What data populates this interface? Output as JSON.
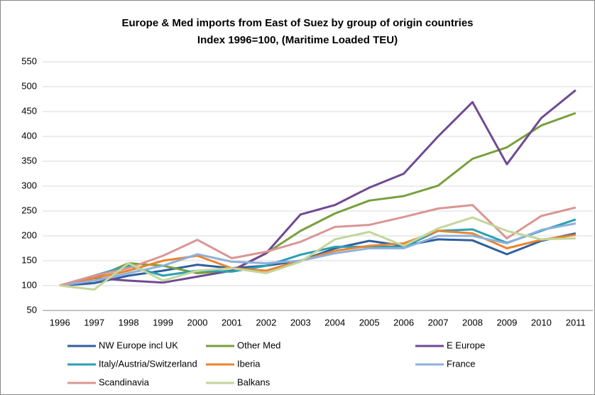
{
  "chart_data": {
    "type": "line",
    "title": "Europe & Med imports from East of Suez by group of origin countries",
    "subtitle": "Index 1996=100, (Maritime Loaded TEU)",
    "categories": [
      "1996",
      "1997",
      "1998",
      "1999",
      "2000",
      "2001",
      "2002",
      "2003",
      "2004",
      "2005",
      "2006",
      "2007",
      "2008",
      "2009",
      "2010",
      "2011"
    ],
    "ylim": [
      50,
      550
    ],
    "yticks": [
      50,
      100,
      150,
      200,
      250,
      300,
      350,
      400,
      450,
      500,
      550
    ],
    "grid": true,
    "series": [
      {
        "name": "NW Europe incl UK",
        "color": "#2f5f9e",
        "values": [
          100,
          105,
          120,
          130,
          142,
          135,
          140,
          150,
          175,
          190,
          180,
          193,
          191,
          163,
          190,
          205
        ]
      },
      {
        "name": "Other Med",
        "color": "#77a03c",
        "values": [
          100,
          115,
          145,
          140,
          125,
          130,
          165,
          210,
          245,
          271,
          280,
          301,
          355,
          378,
          422,
          447
        ]
      },
      {
        "name": "E Europe",
        "color": "#6f4a93",
        "values": [
          100,
          115,
          110,
          106,
          118,
          130,
          165,
          243,
          262,
          297,
          325,
          400,
          469,
          344,
          437,
          493
        ]
      },
      {
        "name": "Italy/Austria/Switzerland",
        "color": "#2aa0b4",
        "values": [
          100,
          120,
          140,
          120,
          130,
          128,
          140,
          162,
          178,
          178,
          178,
          210,
          213,
          186,
          210,
          233
        ]
      },
      {
        "name": "Iberia",
        "color": "#e8852f",
        "values": [
          100,
          115,
          130,
          150,
          160,
          135,
          130,
          150,
          170,
          180,
          185,
          210,
          205,
          175,
          192,
          202
        ]
      },
      {
        "name": "France",
        "color": "#8fb0db",
        "values": [
          100,
          110,
          125,
          140,
          163,
          148,
          145,
          150,
          165,
          175,
          175,
          200,
          200,
          185,
          212,
          225
        ]
      },
      {
        "name": "Scandinavia",
        "color": "#d99694",
        "values": [
          100,
          120,
          135,
          160,
          192,
          155,
          168,
          188,
          218,
          222,
          238,
          255,
          262,
          195,
          240,
          257
        ]
      },
      {
        "name": "Balkans",
        "color": "#c3d69b",
        "values": [
          100,
          92,
          145,
          110,
          130,
          135,
          125,
          148,
          193,
          208,
          180,
          215,
          237,
          210,
          193,
          195
        ]
      }
    ]
  }
}
